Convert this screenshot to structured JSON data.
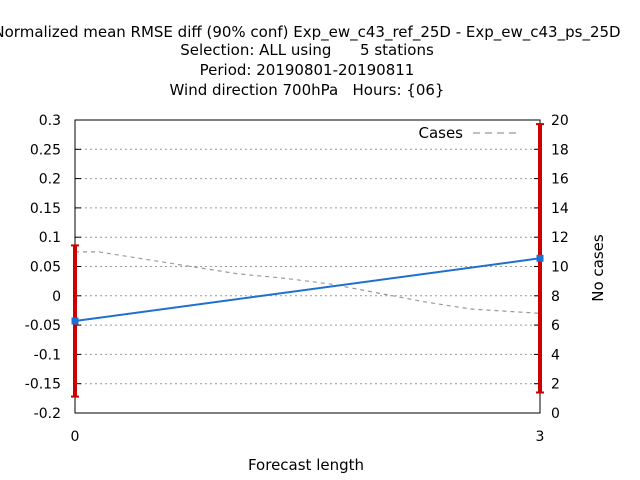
{
  "chart_data": {
    "type": "line",
    "title": [
      "Normalized mean RMSE diff (90% conf) Exp_ew_c43_ref_25D - Exp_ew_c43_ps_25D",
      "Selection: ALL using      5 stations",
      "Period: 20190801-20190811",
      "Wind direction 700hPa   Hours: {06}"
    ],
    "xlabel": "Forecast length",
    "ylabel": "",
    "y2label": "No cases",
    "x": [
      0,
      3
    ],
    "xticks": [
      "0",
      "3"
    ],
    "xlim": [
      0,
      3
    ],
    "ylim": [
      -0.2,
      0.3
    ],
    "yticks": [
      "-0.2",
      "-0.15",
      "-0.1",
      "-0.05",
      "0",
      "0.05",
      "0.1",
      "0.15",
      "0.2",
      "0.25",
      "0.3"
    ],
    "y2lim": [
      0,
      20
    ],
    "y2ticks": [
      "0",
      "2",
      "4",
      "6",
      "8",
      "10",
      "12",
      "14",
      "16",
      "18",
      "20"
    ],
    "grid": true,
    "legend_position": "top-right",
    "series": [
      {
        "values": [
          -0.043,
          0.064
        ],
        "color": "#1f6fd1",
        "axis": "left",
        "error_bars": [
          {
            "x": 0,
            "low": -0.172,
            "high": 0.086
          },
          {
            "x": 3,
            "low": -0.165,
            "high": 0.293
          }
        ],
        "error_color": "#cc0000"
      },
      {
        "name": "Cases",
        "values": [
          11,
          11,
          10.5,
          10.0,
          9.5,
          9.2,
          8.8,
          8.2,
          7.6,
          7.1,
          6.8
        ],
        "x": [
          0,
          0.15,
          0.45,
          0.75,
          1.05,
          1.35,
          1.65,
          1.95,
          2.25,
          2.55,
          3
        ],
        "color": "#999999",
        "dash": true,
        "axis": "right"
      }
    ]
  }
}
